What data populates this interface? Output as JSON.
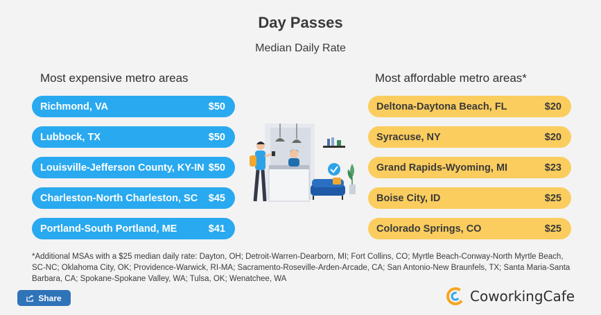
{
  "header": {
    "title": "Day Passes",
    "subtitle": "Median Daily Rate"
  },
  "expensive": {
    "title": "Most expensive metro areas",
    "color": "#29a9ef",
    "items": [
      {
        "name": "Richmond, VA",
        "price": "$50"
      },
      {
        "name": "Lubbock, TX",
        "price": "$50"
      },
      {
        "name": "Louisville-Jefferson County, KY-IN",
        "price": "$50"
      },
      {
        "name": "Charleston-North Charleston, SC",
        "price": "$45"
      },
      {
        "name": "Portland-South Portland, ME",
        "price": "$41"
      }
    ]
  },
  "affordable": {
    "title": "Most affordable metro areas*",
    "color": "#fbcd5e",
    "items": [
      {
        "name": "Deltona-Daytona Beach, FL",
        "price": "$20"
      },
      {
        "name": "Syracuse, NY",
        "price": "$20"
      },
      {
        "name": "Grand Rapids-Wyoming, MI",
        "price": "$23"
      },
      {
        "name": "Boise City, ID",
        "price": "$25"
      },
      {
        "name": "Colorado Springs, CO",
        "price": "$25"
      }
    ]
  },
  "footnote": "*Additional MSAs with a $25 median daily rate:  Dayton, OH; Detroit-Warren-Dearborn, MI; Fort Collins, CO; Myrtle Beach-Conway-North Myrtle Beach, SC-NC; Oklahoma City, OK; Providence-Warwick, RI-MA; Sacramento-Roseville-Arden-Arcade, CA; San Antonio-New Braunfels, TX; Santa Maria-Santa Barbara, CA; Spokane-Spokane Valley, WA; Tulsa, OK; Wenatchee, WA",
  "share": {
    "label": "Share",
    "icon": "share-icon"
  },
  "brand": {
    "name": "CoworkingCafe",
    "icon": "coworkingcafe-logo-icon"
  }
}
